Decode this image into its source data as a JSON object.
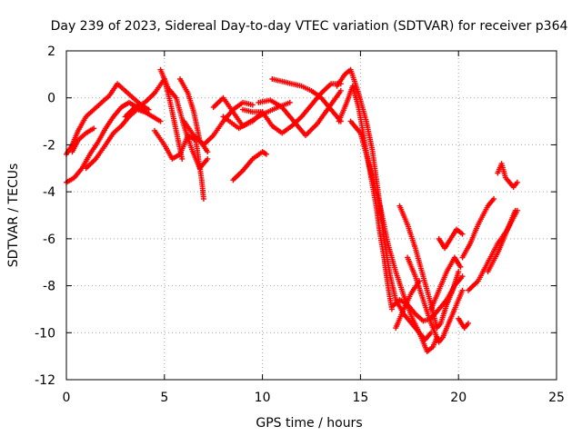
{
  "chart_data": {
    "type": "scatter",
    "title": "Day 239 of 2023, Sidereal Day-to-day VTEC variation (SDTVAR) for receiver p364",
    "xlabel": "GPS time / hours",
    "ylabel": "SDTVAR / TECUs",
    "xlim": [
      0,
      25
    ],
    "ylim": [
      -12,
      2
    ],
    "xticks": [
      0,
      5,
      10,
      15,
      20,
      25
    ],
    "yticks": [
      -12,
      -10,
      -8,
      -6,
      -4,
      -2,
      0,
      2
    ],
    "grid": true,
    "marker": "+",
    "color": "#ff0000",
    "tracks": [
      [
        [
          0.0,
          -3.6
        ],
        [
          0.4,
          -3.4
        ],
        [
          0.8,
          -3.0
        ],
        [
          1.2,
          -2.4
        ],
        [
          1.6,
          -1.9
        ],
        [
          2.0,
          -1.3
        ],
        [
          2.4,
          -0.8
        ],
        [
          2.8,
          -0.4
        ],
        [
          3.2,
          -0.2
        ],
        [
          3.6,
          -0.4
        ],
        [
          4.0,
          -0.6
        ]
      ],
      [
        [
          0.0,
          -2.4
        ],
        [
          0.3,
          -2.0
        ],
        [
          0.6,
          -1.4
        ],
        [
          1.0,
          -0.8
        ],
        [
          1.4,
          -0.5
        ],
        [
          1.8,
          -0.2
        ],
        [
          2.2,
          0.1
        ],
        [
          2.6,
          0.6
        ],
        [
          3.0,
          0.3
        ],
        [
          3.4,
          0.0
        ],
        [
          3.8,
          -0.3
        ],
        [
          4.2,
          -0.5
        ]
      ],
      [
        [
          1.0,
          -3.0
        ],
        [
          1.5,
          -2.6
        ],
        [
          2.0,
          -2.0
        ],
        [
          2.4,
          -1.5
        ],
        [
          2.8,
          -1.2
        ],
        [
          3.2,
          -0.8
        ],
        [
          3.6,
          -0.5
        ],
        [
          4.0,
          -0.6
        ],
        [
          4.4,
          -0.8
        ],
        [
          4.8,
          -1.0
        ]
      ],
      [
        [
          0.3,
          -2.3
        ],
        [
          0.6,
          -1.8
        ],
        [
          1.0,
          -1.5
        ],
        [
          1.4,
          -1.3
        ]
      ],
      [
        [
          3.0,
          -0.8
        ],
        [
          3.5,
          -0.4
        ],
        [
          4.0,
          -0.2
        ],
        [
          4.5,
          0.2
        ],
        [
          5.0,
          0.8
        ],
        [
          5.3,
          -0.2
        ],
        [
          5.6,
          -1.4
        ],
        [
          5.9,
          -2.6
        ]
      ],
      [
        [
          4.5,
          -1.4
        ],
        [
          5.0,
          -2.0
        ],
        [
          5.4,
          -2.6
        ],
        [
          5.8,
          -2.4
        ],
        [
          6.2,
          -1.6
        ],
        [
          6.6,
          -1.8
        ],
        [
          6.9,
          -3.5
        ],
        [
          7.0,
          -4.3
        ]
      ],
      [
        [
          4.8,
          1.2
        ],
        [
          5.2,
          0.4
        ],
        [
          5.6,
          0.0
        ],
        [
          6.0,
          -1.2
        ],
        [
          6.4,
          -2.2
        ],
        [
          6.8,
          -3.0
        ],
        [
          7.2,
          -2.6
        ]
      ],
      [
        [
          5.8,
          0.8
        ],
        [
          6.2,
          0.2
        ],
        [
          6.5,
          -0.6
        ],
        [
          6.8,
          -1.8
        ],
        [
          7.2,
          -2.3
        ]
      ],
      [
        [
          6.0,
          -1.0
        ],
        [
          6.5,
          -1.6
        ],
        [
          7.0,
          -2.0
        ],
        [
          7.5,
          -1.6
        ],
        [
          8.0,
          -1.0
        ],
        [
          8.5,
          -0.5
        ],
        [
          9.0,
          -0.2
        ],
        [
          9.5,
          -0.3
        ]
      ],
      [
        [
          7.5,
          -0.4
        ],
        [
          8.0,
          0.0
        ],
        [
          8.5,
          -0.6
        ],
        [
          9.0,
          -1.2
        ],
        [
          9.5,
          -1.0
        ],
        [
          10.0,
          -0.6
        ]
      ],
      [
        [
          8.5,
          -3.5
        ],
        [
          9.0,
          -3.1
        ],
        [
          9.5,
          -2.6
        ],
        [
          10.0,
          -2.3
        ],
        [
          10.2,
          -2.4
        ]
      ],
      [
        [
          8.0,
          -0.8
        ],
        [
          8.8,
          -1.3
        ],
        [
          9.4,
          -1.0
        ],
        [
          10.0,
          -0.7
        ],
        [
          10.8,
          -0.4
        ],
        [
          11.4,
          -0.2
        ]
      ],
      [
        [
          9.0,
          -0.5
        ],
        [
          9.5,
          -0.6
        ],
        [
          10.0,
          -0.6
        ],
        [
          10.5,
          -1.2
        ],
        [
          11.0,
          -1.5
        ],
        [
          11.5,
          -1.2
        ],
        [
          12.0,
          -0.8
        ],
        [
          12.5,
          -0.3
        ],
        [
          13.0,
          0.2
        ],
        [
          13.5,
          0.6
        ],
        [
          14.0,
          0.6
        ]
      ],
      [
        [
          9.8,
          -0.2
        ],
        [
          10.4,
          -0.1
        ],
        [
          11.0,
          -0.4
        ],
        [
          11.6,
          -1.0
        ],
        [
          12.2,
          -1.6
        ],
        [
          12.8,
          -1.1
        ],
        [
          13.4,
          -0.4
        ],
        [
          14.0,
          0.3
        ]
      ],
      [
        [
          10.5,
          0.8
        ],
        [
          11.0,
          0.7
        ],
        [
          11.5,
          0.6
        ],
        [
          12.0,
          0.5
        ],
        [
          12.5,
          0.3
        ],
        [
          13.0,
          0.0
        ],
        [
          13.5,
          -0.5
        ],
        [
          14.0,
          -1.0
        ]
      ],
      [
        [
          13.8,
          0.5
        ],
        [
          14.2,
          1.0
        ],
        [
          14.5,
          1.2
        ],
        [
          14.9,
          0.2
        ],
        [
          15.3,
          -1.0
        ],
        [
          15.6,
          -2.2
        ],
        [
          15.9,
          -4.0
        ],
        [
          16.2,
          -6.0
        ],
        [
          16.5,
          -7.5
        ],
        [
          16.8,
          -8.6
        ],
        [
          17.2,
          -9.2
        ],
        [
          17.6,
          -9.6
        ],
        [
          18.0,
          -10.0
        ],
        [
          18.3,
          -10.3
        ],
        [
          18.6,
          -10.0
        ]
      ],
      [
        [
          13.9,
          -1.0
        ],
        [
          14.3,
          -0.2
        ],
        [
          14.6,
          0.5
        ],
        [
          14.9,
          -0.4
        ],
        [
          15.2,
          -1.8
        ],
        [
          15.5,
          -3.2
        ],
        [
          15.8,
          -4.6
        ],
        [
          16.0,
          -5.8
        ],
        [
          16.2,
          -6.8
        ],
        [
          16.4,
          -8.0
        ],
        [
          16.6,
          -9.0
        ]
      ],
      [
        [
          14.5,
          -1.0
        ],
        [
          15.0,
          -1.5
        ],
        [
          15.3,
          -2.4
        ],
        [
          15.6,
          -3.4
        ],
        [
          16.0,
          -4.6
        ],
        [
          16.4,
          -6.2
        ],
        [
          16.8,
          -7.4
        ],
        [
          17.2,
          -8.4
        ],
        [
          17.6,
          -9.3
        ],
        [
          18.0,
          -10.0
        ],
        [
          18.4,
          -10.8
        ],
        [
          18.7,
          -10.6
        ],
        [
          18.9,
          -10.2
        ]
      ],
      [
        [
          16.8,
          -9.8
        ],
        [
          17.2,
          -9.0
        ],
        [
          17.6,
          -8.3
        ],
        [
          18.0,
          -7.8
        ]
      ],
      [
        [
          16.6,
          -8.9
        ],
        [
          17.0,
          -8.6
        ],
        [
          17.4,
          -8.8
        ],
        [
          17.8,
          -9.2
        ],
        [
          18.2,
          -9.5
        ],
        [
          18.6,
          -9.4
        ],
        [
          19.0,
          -9.0
        ],
        [
          19.4,
          -8.6
        ],
        [
          19.8,
          -8.0
        ],
        [
          20.2,
          -7.6
        ]
      ],
      [
        [
          17.0,
          -4.6
        ],
        [
          17.4,
          -5.4
        ],
        [
          17.8,
          -6.4
        ],
        [
          18.2,
          -7.6
        ],
        [
          18.6,
          -8.8
        ],
        [
          18.9,
          -9.8
        ],
        [
          19.1,
          -9.6
        ],
        [
          19.4,
          -8.8
        ],
        [
          19.7,
          -8.2
        ],
        [
          20.0,
          -7.4
        ]
      ],
      [
        [
          17.4,
          -6.8
        ],
        [
          17.8,
          -7.6
        ],
        [
          18.2,
          -8.6
        ],
        [
          18.6,
          -9.6
        ],
        [
          19.0,
          -10.4
        ],
        [
          19.2,
          -10.2
        ],
        [
          19.5,
          -9.6
        ],
        [
          19.8,
          -9.0
        ],
        [
          20.2,
          -8.2
        ]
      ],
      [
        [
          18.6,
          -9.0
        ],
        [
          19.0,
          -8.2
        ],
        [
          19.4,
          -7.4
        ],
        [
          19.8,
          -6.8
        ],
        [
          20.1,
          -7.2
        ]
      ],
      [
        [
          19.0,
          -6.0
        ],
        [
          19.3,
          -6.4
        ],
        [
          19.6,
          -6.0
        ],
        [
          19.9,
          -5.6
        ],
        [
          20.2,
          -5.8
        ]
      ],
      [
        [
          20.0,
          -9.4
        ],
        [
          20.3,
          -9.8
        ],
        [
          20.5,
          -9.6
        ]
      ],
      [
        [
          20.5,
          -8.2
        ],
        [
          21.0,
          -7.8
        ],
        [
          21.5,
          -7.0
        ],
        [
          22.0,
          -6.2
        ],
        [
          22.5,
          -5.6
        ],
        [
          23.0,
          -4.8
        ]
      ],
      [
        [
          20.2,
          -6.8
        ],
        [
          20.6,
          -6.2
        ],
        [
          21.0,
          -5.4
        ],
        [
          21.5,
          -4.6
        ],
        [
          21.8,
          -4.3
        ]
      ],
      [
        [
          21.5,
          -7.4
        ],
        [
          22.0,
          -6.6
        ],
        [
          22.3,
          -6.0
        ],
        [
          22.6,
          -5.4
        ],
        [
          22.9,
          -4.8
        ]
      ],
      [
        [
          22.0,
          -3.2
        ],
        [
          22.2,
          -2.8
        ],
        [
          22.4,
          -3.4
        ],
        [
          22.8,
          -3.8
        ],
        [
          23.0,
          -3.6
        ]
      ]
    ]
  }
}
